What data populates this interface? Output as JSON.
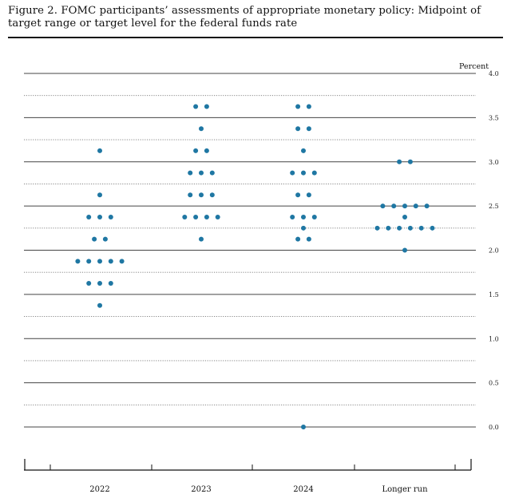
{
  "figure": {
    "title": "Figure 2.  FOMC participants’ assessments of appropriate monetary policy:  Midpoint of target range or target level for the federal funds rate"
  },
  "chart_data": {
    "type": "scatter",
    "title": "Figure 2.  FOMC participants’ assessments of appropriate monetary policy:  Midpoint of target range or target level for the federal funds rate",
    "ylabel": "Percent",
    "xlabel": "",
    "ylim": [
      0,
      4
    ],
    "yticks": [
      "0.0",
      "0.5",
      "1.0",
      "1.5",
      "2.0",
      "2.5",
      "3.0",
      "3.5",
      "4.0"
    ],
    "categories": [
      "2022",
      "2023",
      "2024",
      "Longer run"
    ],
    "dot_color": "#1f77a3",
    "points": [
      {
        "category": "2022",
        "y": 3.125,
        "count": 1
      },
      {
        "category": "2022",
        "y": 2.625,
        "count": 1
      },
      {
        "category": "2022",
        "y": 2.375,
        "count": 3
      },
      {
        "category": "2022",
        "y": 2.125,
        "count": 2
      },
      {
        "category": "2022",
        "y": 1.875,
        "count": 5
      },
      {
        "category": "2022",
        "y": 1.625,
        "count": 3
      },
      {
        "category": "2022",
        "y": 1.375,
        "count": 1
      },
      {
        "category": "2023",
        "y": 3.625,
        "count": 2
      },
      {
        "category": "2023",
        "y": 3.375,
        "count": 1
      },
      {
        "category": "2023",
        "y": 3.125,
        "count": 2
      },
      {
        "category": "2023",
        "y": 2.875,
        "count": 3
      },
      {
        "category": "2023",
        "y": 2.625,
        "count": 3
      },
      {
        "category": "2023",
        "y": 2.375,
        "count": 4
      },
      {
        "category": "2023",
        "y": 2.125,
        "count": 1
      },
      {
        "category": "2024",
        "y": 3.625,
        "count": 2
      },
      {
        "category": "2024",
        "y": 3.375,
        "count": 2
      },
      {
        "category": "2024",
        "y": 3.125,
        "count": 1
      },
      {
        "category": "2024",
        "y": 2.875,
        "count": 3
      },
      {
        "category": "2024",
        "y": 2.625,
        "count": 2
      },
      {
        "category": "2024",
        "y": 2.375,
        "count": 3
      },
      {
        "category": "2024",
        "y": 2.25,
        "count": 1
      },
      {
        "category": "2024",
        "y": 2.125,
        "count": 2
      },
      {
        "category": "2024",
        "y": 0.0,
        "count": 1
      },
      {
        "category": "Longer run",
        "y": 3.0,
        "count": 2
      },
      {
        "category": "Longer run",
        "y": 2.5,
        "count": 5
      },
      {
        "category": "Longer run",
        "y": 2.375,
        "count": 1
      },
      {
        "category": "Longer run",
        "y": 2.25,
        "count": 6
      },
      {
        "category": "Longer run",
        "y": 2.0,
        "count": 1
      }
    ]
  }
}
